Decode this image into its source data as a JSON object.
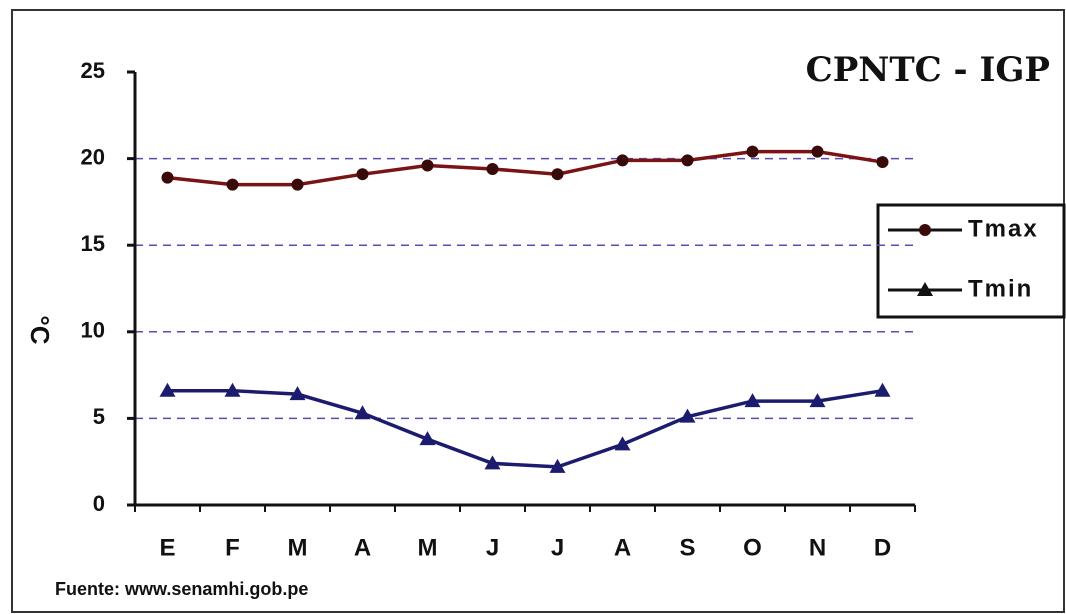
{
  "chart_data": {
    "type": "line",
    "title": "CPNTC - IGP",
    "ylabel": "°C",
    "categories": [
      "E",
      "F",
      "M",
      "A",
      "M",
      "J",
      "J",
      "A",
      "S",
      "O",
      "N",
      "D"
    ],
    "series": [
      {
        "name": "Tmax",
        "color": "#7a1414",
        "marker": "circle",
        "values": [
          18.9,
          18.5,
          18.5,
          19.1,
          19.6,
          19.4,
          19.1,
          19.9,
          19.9,
          20.4,
          20.4,
          19.8
        ]
      },
      {
        "name": "Tmin",
        "color": "#1c1c6e",
        "marker": "triangle",
        "values": [
          6.6,
          6.6,
          6.4,
          5.3,
          3.8,
          2.4,
          2.2,
          3.5,
          5.1,
          6.0,
          6.0,
          6.6
        ]
      }
    ],
    "ylim": [
      0,
      25
    ],
    "yticks": [
      0,
      5,
      10,
      15,
      20,
      25
    ],
    "grid": true,
    "legend": "right",
    "source": "Fuente: www.senamhi.gob.pe"
  }
}
